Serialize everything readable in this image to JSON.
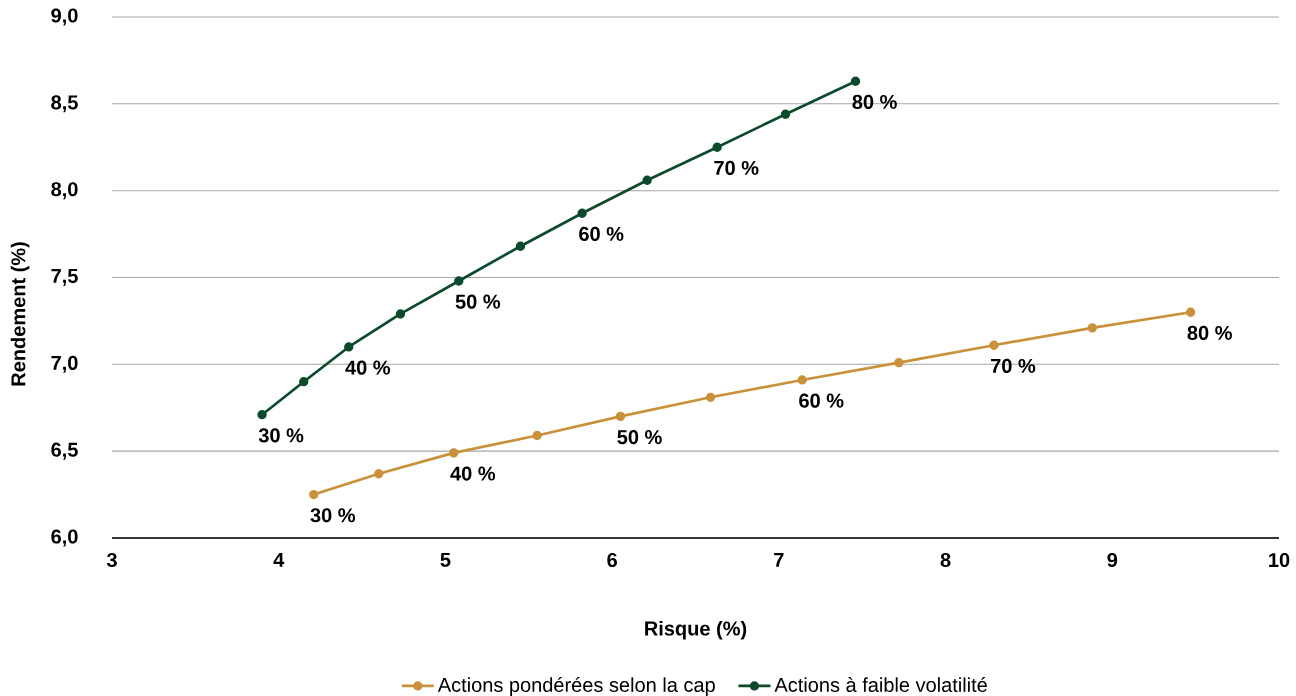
{
  "chart_data": {
    "type": "line",
    "xlabel": "Risque (%)",
    "ylabel": "Rendement (%)",
    "xlim": [
      3,
      10
    ],
    "ylim": [
      6,
      9
    ],
    "xticks": [
      3,
      4,
      5,
      6,
      7,
      8,
      9,
      10
    ],
    "yticks": [
      {
        "value": 6,
        "label": "6,0"
      },
      {
        "value": 6.5,
        "label": "6,5"
      },
      {
        "value": 7,
        "label": "7,0"
      },
      {
        "value": 7.5,
        "label": "7,5"
      },
      {
        "value": 8,
        "label": "8,0"
      },
      {
        "value": 8.5,
        "label": "8,5"
      },
      {
        "value": 9,
        "label": "9,0"
      }
    ],
    "grid": "y",
    "legend": "bottom",
    "marker": "circle",
    "line_style": "solid",
    "series": [
      {
        "name": "Actions pondérées selon la cap",
        "color": "#c9913a",
        "x": [
          4.21,
          4.6,
          5.05,
          5.55,
          6.05,
          6.59,
          7.14,
          7.72,
          8.29,
          8.88,
          9.47
        ],
        "values": [
          6.25,
          6.37,
          6.49,
          6.59,
          6.7,
          6.81,
          6.91,
          7.01,
          7.11,
          7.21,
          7.3
        ]
      },
      {
        "name": "Actions à faible volatilité",
        "color": "#0b4a2b",
        "x": [
          3.9,
          4.15,
          4.42,
          4.73,
          5.08,
          5.45,
          5.82,
          6.21,
          6.63,
          7.04,
          7.46
        ],
        "values": [
          6.71,
          6.9,
          7.1,
          7.29,
          7.48,
          7.68,
          7.87,
          8.06,
          8.25,
          8.44,
          8.63
        ]
      }
    ],
    "annotations": [
      {
        "text": "30 %",
        "x": 4.21,
        "y": 6.25
      },
      {
        "text": "40 %",
        "x": 5.05,
        "y": 6.49
      },
      {
        "text": "50 %",
        "x": 6.05,
        "y": 6.7
      },
      {
        "text": "60 %",
        "x": 7.14,
        "y": 6.91
      },
      {
        "text": "70 %",
        "x": 8.29,
        "y": 7.11
      },
      {
        "text": "80 %",
        "x": 9.47,
        "y": 7.3
      },
      {
        "text": "30 %",
        "x": 3.9,
        "y": 6.71
      },
      {
        "text": "40 %",
        "x": 4.42,
        "y": 7.1
      },
      {
        "text": "50 %",
        "x": 5.08,
        "y": 7.48
      },
      {
        "text": "60 %",
        "x": 5.82,
        "y": 7.87
      },
      {
        "text": "70 %",
        "x": 6.63,
        "y": 8.25
      },
      {
        "text": "80 %",
        "x": 7.46,
        "y": 8.63
      }
    ]
  }
}
